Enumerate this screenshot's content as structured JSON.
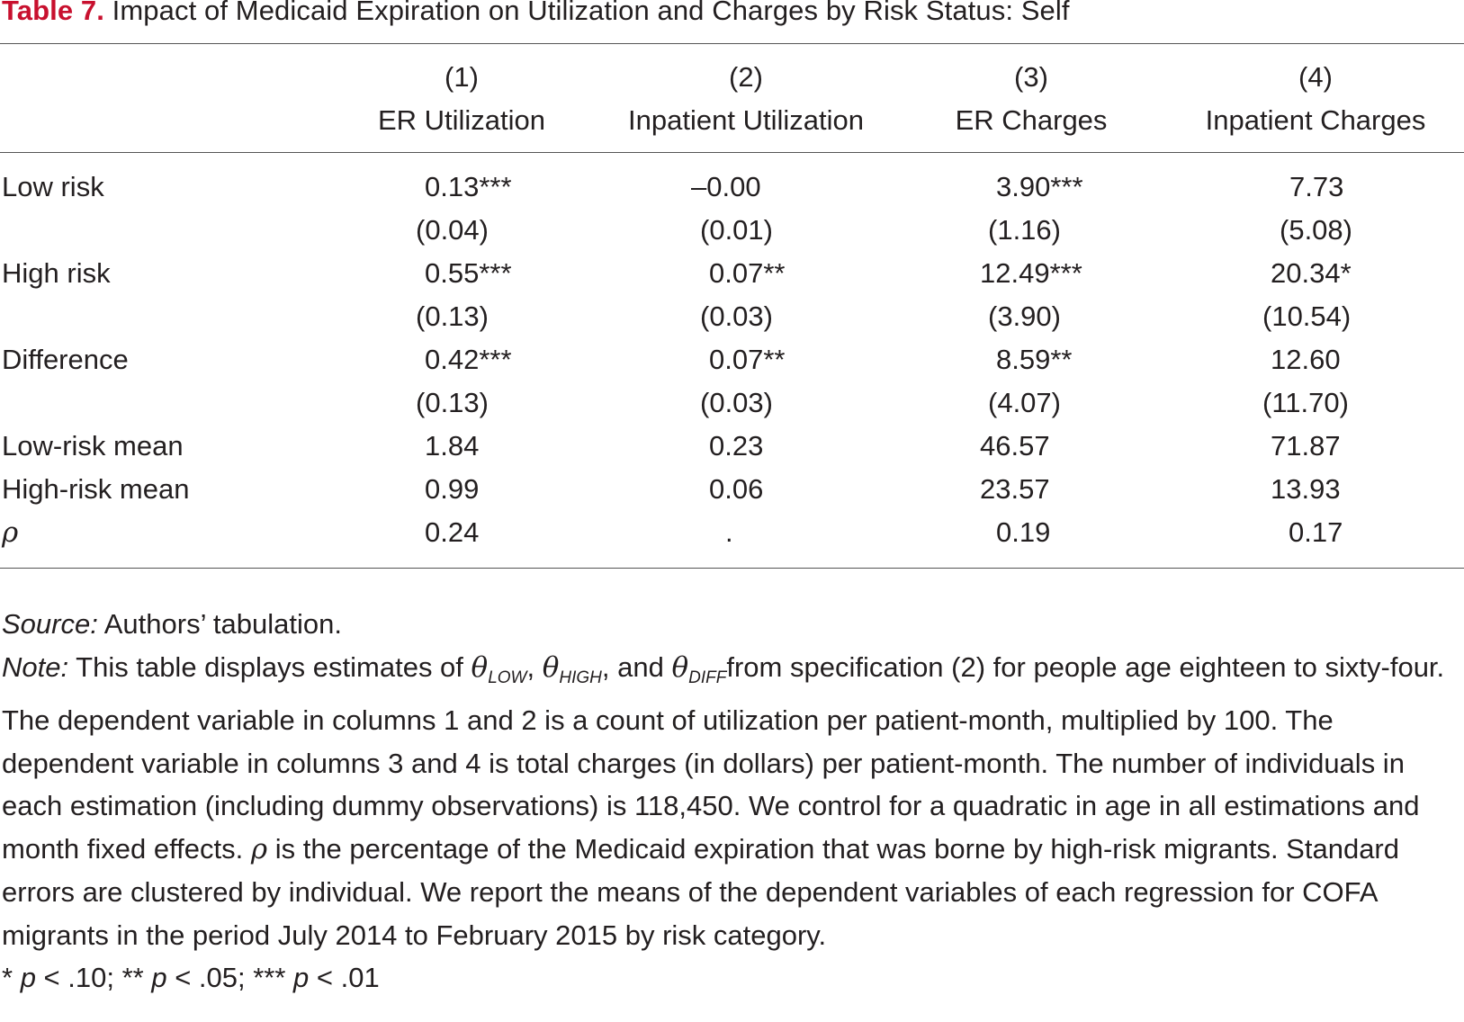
{
  "table": {
    "label": "Table 7.",
    "title": "Impact of Medicaid Expiration on Utilization and Charges by Risk Status: Self",
    "columns": [
      {
        "num": "(1)",
        "name": "ER Utilization"
      },
      {
        "num": "(2)",
        "name": "Inpatient Utilization"
      },
      {
        "num": "(3)",
        "name": "ER Charges"
      },
      {
        "num": "(4)",
        "name": "Inpatient Charges"
      }
    ],
    "rows": [
      {
        "label": "Low risk",
        "values": [
          "0.13***",
          "–0.00",
          "3.90***",
          "7.73"
        ]
      },
      {
        "label": "",
        "values": [
          "(0.04)",
          "(0.01)",
          "(1.16)",
          "(5.08)"
        ]
      },
      {
        "label": "High risk",
        "values": [
          "0.55***",
          "0.07**",
          "12.49***",
          "20.34*"
        ]
      },
      {
        "label": "",
        "values": [
          "(0.13)",
          "(0.03)",
          "(3.90)",
          "(10.54)"
        ]
      },
      {
        "label": "Difference",
        "values": [
          "0.42***",
          "0.07**",
          "8.59**",
          "12.60"
        ]
      },
      {
        "label": "",
        "values": [
          "(0.13)",
          "(0.03)",
          "(4.07)",
          "(11.70)"
        ]
      },
      {
        "label": "Low-risk mean",
        "values": [
          "1.84",
          "0.23",
          "46.57",
          "71.87"
        ]
      },
      {
        "label": "High-risk mean",
        "values": [
          "0.99",
          "0.06",
          "23.57",
          "13.93"
        ]
      },
      {
        "label": "ρ",
        "values": [
          "0.24",
          ".",
          "0.19",
          "0.17"
        ]
      }
    ]
  },
  "notes": {
    "source_label": "Source:",
    "source_text": " Authors’ tabulation.",
    "note_label": "Note:",
    "note_pre": " This table displays estimates of ",
    "theta_symbol": "θ",
    "sub_low": "LOW",
    "sub_high": "HIGH",
    "sub_diff": "DIFF",
    "sep1": ", ",
    "sep2": ", and ",
    "note_mid": "from specification (2) for people age eighteen to sixty-four. The dependent variable in columns 1 and 2 is a count of utilization per patient-month, multiplied by 100. The dependent variable in columns 3 and 4 is total charges (in dollars) per patient-month. The number of individuals in each estimation (including dummy observations) is 118,450. We control for a quadratic in age in all estimations and month fixed effects. ",
    "rho_symbol": "ρ",
    "note_post": " is the percentage of the Medicaid expiration that was borne by high-risk migrants. Standard errors are clustered by individual. We report the means of the dependent variables of each regression for COFA migrants in the period July 2014 to February 2015 by risk category.",
    "sig_1": "* ",
    "p1": "p",
    "sig_2": " < .10; ** ",
    "p2": "p",
    "sig_3": " < .05; *** ",
    "p3": "p",
    "sig_4": " < .01"
  }
}
